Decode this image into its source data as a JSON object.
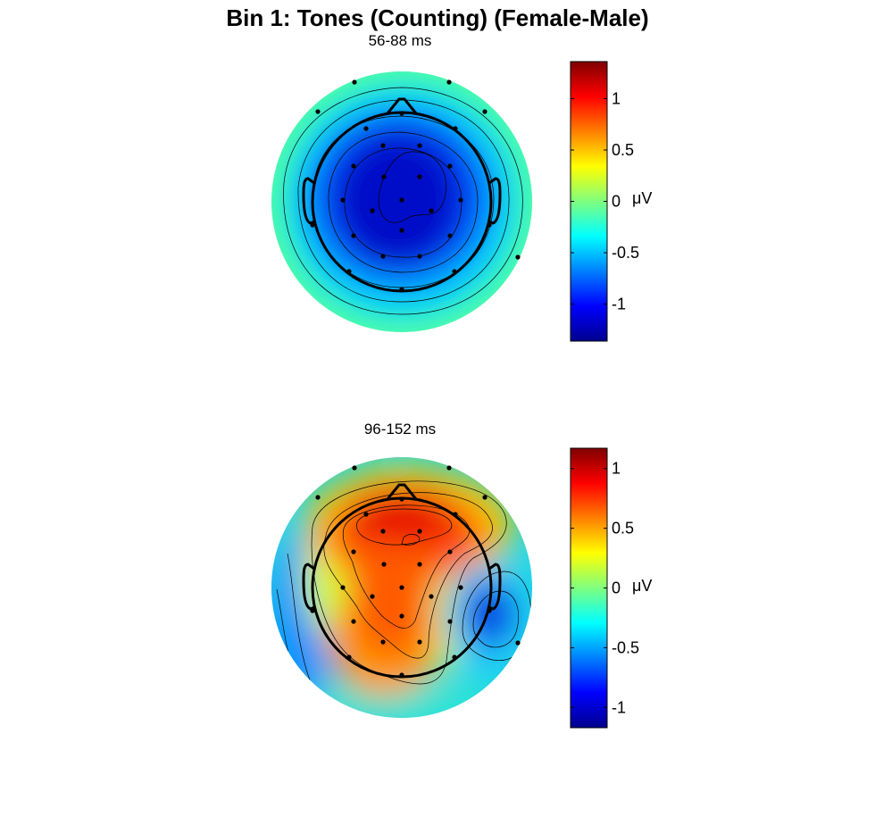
{
  "figure": {
    "title": "Bin 1: Tones (Counting) (Female-Male)"
  },
  "chart_data": [
    {
      "type": "heatmap",
      "subtype": "scalp-topography",
      "title": "56-88 ms",
      "colormap": "jet",
      "colorbar": {
        "range": [
          -1.36,
          1.36
        ],
        "ticks": [
          1,
          0.5,
          0,
          -0.5,
          -1
        ],
        "tick_labels": [
          "1",
          "0.5",
          "0",
          "-0.5",
          "-1"
        ],
        "unit": "μV"
      },
      "summary": {
        "min": -1.3,
        "max": -0.1,
        "minimum_region": "central",
        "maximum_region": "periphery"
      },
      "contours": true,
      "electrodes_shown": true
    },
    {
      "type": "heatmap",
      "subtype": "scalp-topography",
      "title": "96-152 ms",
      "colormap": "jet",
      "colorbar": {
        "range": [
          -1.17,
          1.17
        ],
        "ticks": [
          1,
          0.5,
          0,
          -0.5,
          -1
        ],
        "tick_labels": [
          "1",
          "0.5",
          "0",
          "-0.5",
          "-1"
        ],
        "unit": "μV"
      },
      "summary": {
        "min": -1.1,
        "max": 1.1,
        "minimum_region": "right temporal",
        "maximum_region": "frontal-central"
      },
      "contours": true,
      "electrodes_shown": true
    }
  ]
}
